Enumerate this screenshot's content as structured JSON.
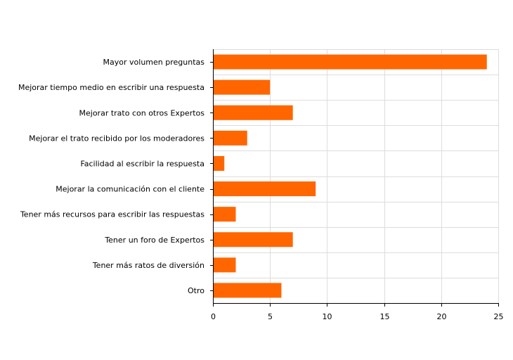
{
  "chart_data": {
    "type": "bar",
    "orientation": "horizontal",
    "categories": [
      "Mayor volumen preguntas",
      "Mejorar tiempo medio en escribir una respuesta",
      "Mejorar trato con otros Expertos",
      "Mejorar el trato recibido por los moderadores",
      "Facilidad al escribir la respuesta",
      "Mejorar la comunicación con el cliente",
      "Tener más recursos para escribir las respuestas",
      "Tener un foro de Expertos",
      "Tener más ratos de diversión",
      "Otro"
    ],
    "values": [
      24,
      5,
      7,
      3,
      1,
      9,
      2,
      7,
      2,
      6
    ],
    "xlim": [
      0,
      25
    ],
    "xticks": [
      "0",
      "5",
      "10",
      "15",
      "20",
      "25"
    ],
    "title": "",
    "xlabel": "",
    "ylabel": "",
    "grid": true,
    "legend": "none",
    "bar_color": "#ff6600",
    "grid_color": "#dddddd",
    "axis_color": "#000000"
  }
}
